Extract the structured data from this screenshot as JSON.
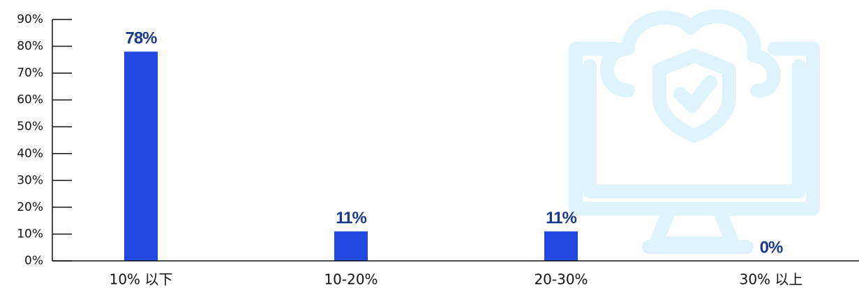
{
  "chart_data": {
    "type": "bar",
    "categories": [
      "10% 以下",
      "10-20%",
      "20-30%",
      "30% 以上"
    ],
    "values": [
      78,
      11,
      11,
      0
    ],
    "value_labels": [
      "78%",
      "11%",
      "11%",
      "0%"
    ],
    "color": "#2149e0",
    "ylim": [
      0,
      90
    ],
    "yticks": [
      {
        "value": 0,
        "label": "0%"
      },
      {
        "value": 10,
        "label": "10%"
      },
      {
        "value": 20,
        "label": "20%"
      },
      {
        "value": 30,
        "label": "30%"
      },
      {
        "value": 40,
        "label": "40%"
      },
      {
        "value": 50,
        "label": "50%"
      },
      {
        "value": 60,
        "label": "60%"
      },
      {
        "value": 70,
        "label": "70%"
      },
      {
        "value": 80,
        "label": "80%"
      },
      {
        "value": 90,
        "label": "90%"
      }
    ]
  }
}
